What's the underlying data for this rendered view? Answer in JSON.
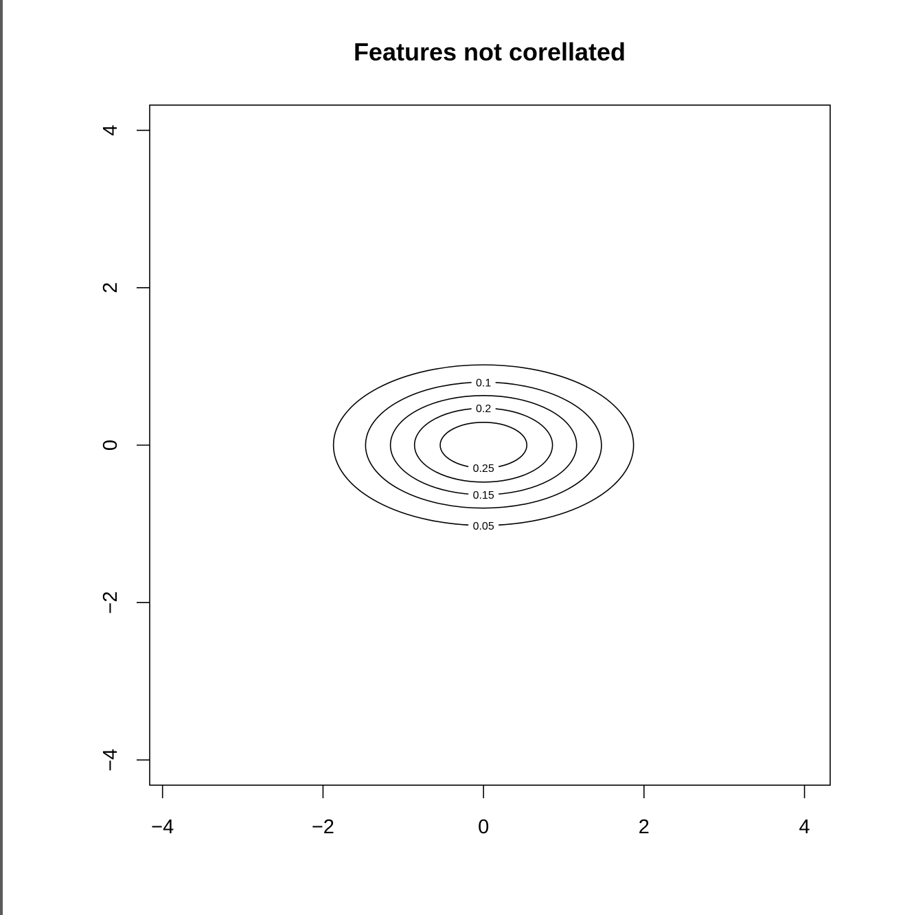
{
  "chart_data": {
    "type": "contour",
    "title": "Features not corellated",
    "xlabel": "",
    "ylabel": "",
    "xlim": [
      -4.16,
      4.32
    ],
    "ylim": [
      -4.32,
      4.32
    ],
    "x_ticks": [
      -4,
      -2,
      0,
      2,
      4
    ],
    "x_tick_labels": [
      "−4",
      "−2",
      "0",
      "2",
      "4"
    ],
    "y_ticks": [
      -4,
      -2,
      0,
      2,
      4
    ],
    "y_tick_labels": [
      "−4",
      "−2",
      "0",
      "2",
      "4"
    ],
    "grid": false,
    "center": [
      0,
      0
    ],
    "levels": [
      {
        "label": "0.05",
        "value": 0.05,
        "x_halfwidth": 1.87,
        "y_halfwidth": 1.02,
        "label_side": "bottom"
      },
      {
        "label": "0.1",
        "value": 0.1,
        "x_halfwidth": 1.47,
        "y_halfwidth": 0.8,
        "label_side": "top"
      },
      {
        "label": "0.15",
        "value": 0.15,
        "x_halfwidth": 1.16,
        "y_halfwidth": 0.63,
        "label_side": "bottom"
      },
      {
        "label": "0.2",
        "value": 0.2,
        "x_halfwidth": 0.86,
        "y_halfwidth": 0.47,
        "label_side": "top"
      },
      {
        "label": "0.25",
        "value": 0.25,
        "x_halfwidth": 0.54,
        "y_halfwidth": 0.29,
        "label_side": "bottom"
      }
    ],
    "line_color": "#000000"
  }
}
